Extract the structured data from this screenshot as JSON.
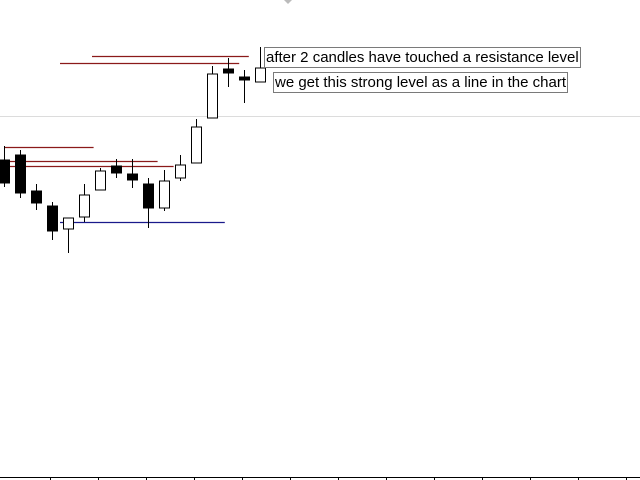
{
  "chart_data": {
    "type": "candlestick",
    "title": "",
    "xlabel": "",
    "ylabel": "",
    "grid": false,
    "annotations": [
      "after 2 candles have touched a resistance level",
      "we get this strong level as a line in the chart"
    ],
    "candles": [
      {
        "open": 108,
        "high": 122,
        "low": 81,
        "close": 85
      },
      {
        "open": 113,
        "high": 118,
        "low": 70,
        "close": 75
      },
      {
        "open": 77,
        "high": 84,
        "low": 58,
        "close": 65
      },
      {
        "open": 62,
        "high": 66,
        "low": 28,
        "close": 37
      },
      {
        "open": 39,
        "high": 50,
        "low": 15,
        "close": 50
      },
      {
        "open": 51,
        "high": 84,
        "low": 46,
        "close": 73
      },
      {
        "open": 78,
        "high": 100,
        "low": 78,
        "close": 97
      },
      {
        "open": 102,
        "high": 109,
        "low": 90,
        "close": 95
      },
      {
        "open": 94,
        "high": 109,
        "low": 80,
        "close": 88
      },
      {
        "open": 84,
        "high": 90,
        "low": 40,
        "close": 60
      },
      {
        "open": 60,
        "high": 98,
        "low": 57,
        "close": 87
      },
      {
        "open": 90,
        "high": 113,
        "low": 87,
        "close": 103
      },
      {
        "open": 105,
        "high": 149,
        "low": 105,
        "close": 141
      },
      {
        "open": 150,
        "high": 202,
        "low": 150,
        "close": 194
      },
      {
        "open": 199,
        "high": 210,
        "low": 181,
        "close": 195
      },
      {
        "open": 191,
        "high": 198,
        "low": 165,
        "close": 188
      },
      {
        "open": 186,
        "high": 221,
        "low": 186,
        "close": 200
      }
    ],
    "levels": [
      {
        "kind": "resistance",
        "value": 121,
        "from": 0,
        "to": 5.6,
        "color": "#8b1a1a"
      },
      {
        "kind": "resistance",
        "value": 107,
        "from": -0.3,
        "to": 9.6,
        "color": "#8b1a1a"
      },
      {
        "kind": "resistance",
        "value": 102,
        "from": -0.3,
        "to": 10.6,
        "color": "#8b1a1a"
      },
      {
        "kind": "support",
        "value": 46,
        "from": 3.5,
        "to": 13.8,
        "color": "#1a1a8b"
      },
      {
        "kind": "resistance",
        "value": 212,
        "from": 5.5,
        "to": 15.3,
        "color": "#8b1a1a"
      },
      {
        "kind": "resistance",
        "value": 205,
        "from": 3.5,
        "to": 14.7,
        "color": "#8b1a1a"
      }
    ]
  }
}
